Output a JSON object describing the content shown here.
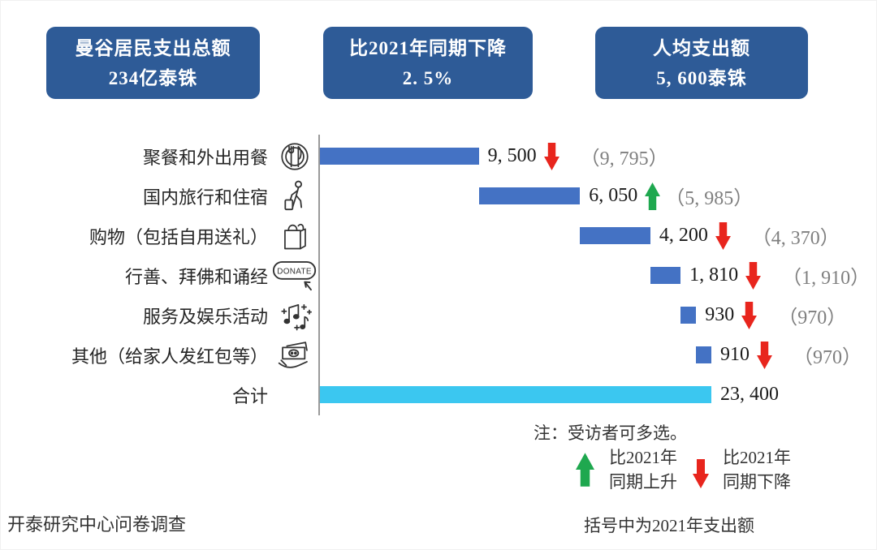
{
  "headers": [
    {
      "line1": "曼谷居民支出总额",
      "line2": "234亿泰铢"
    },
    {
      "line1": "比2021年同期下降",
      "line2": "2. 5%"
    },
    {
      "line1": "人均支出额",
      "line2": "5, 600泰铢"
    }
  ],
  "header_bg": "#2E5B97",
  "chart_data": {
    "type": "bar",
    "subtype": "horizontal-waterfall",
    "unit": "泰铢",
    "categories": [
      "聚餐和外出用餐",
      "国内旅行和住宿",
      "购物（包括自用送礼）",
      "行善、拜佛和诵经",
      "服务及娱乐活动",
      "其他（给家人发红包等）",
      "合计"
    ],
    "values": [
      9500,
      6050,
      4200,
      1810,
      930,
      910,
      23400
    ],
    "value_labels": [
      "9, 500",
      "6, 050",
      "4, 200",
      "1, 810",
      "930",
      "910",
      "23, 400"
    ],
    "prev_year_values": [
      9795,
      5985,
      4370,
      1910,
      970,
      970,
      null
    ],
    "prev_year_labels": [
      "（9, 795）",
      "（5, 985）",
      "（4, 370）",
      "（1, 910）",
      "（970）",
      "（970）",
      ""
    ],
    "trend_vs_2021": [
      "down",
      "up",
      "down",
      "down",
      "down",
      "down",
      null
    ],
    "icons": [
      "dining-icon",
      "travel-icon",
      "shopping-bag-icon",
      "donate-icon",
      "music-icon",
      "cash-icon",
      ""
    ],
    "axis_max": 23400,
    "bar_color_item": "#4472C4",
    "bar_color_total": "#3BC7F0",
    "up_color": "#1FA84F",
    "down_color": "#E8251D",
    "grid": "off",
    "legend_position": "bottom-right"
  },
  "note": "注：受访者可多选。",
  "legend": {
    "up_line1": "比2021年",
    "up_line2": "同期上升",
    "down_line1": "比2021年",
    "down_line2": "同期下降"
  },
  "footer_left": "开泰研究中心问卷调查",
  "footer_right": "括号中为2021年支出额"
}
